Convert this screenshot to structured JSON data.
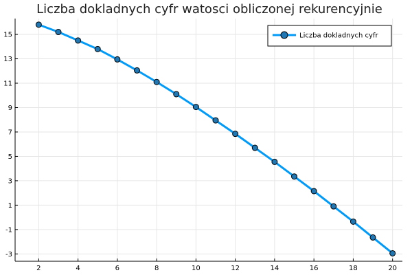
{
  "chart_data": {
    "type": "line",
    "title": "Liczba dokladnych cyfr watosci obliczonej rekurencyjnie",
    "xlabel": "",
    "ylabel": "",
    "xlim": [
      0.8,
      20.5
    ],
    "ylim": [
      -3.6,
      16.3
    ],
    "xticks": [
      2,
      4,
      6,
      8,
      10,
      12,
      14,
      16,
      18,
      20
    ],
    "yticks": [
      -3,
      -1,
      1,
      3,
      5,
      7,
      9,
      11,
      13,
      15
    ],
    "grid": true,
    "legend_position": "top-right",
    "series": [
      {
        "name": "Liczba dokladnych cyfr",
        "color": "#009af9",
        "marker_color": "#1f77b4",
        "x": [
          2,
          3,
          4,
          5,
          6,
          7,
          8,
          9,
          10,
          11,
          12,
          13,
          14,
          15,
          16,
          17,
          18,
          19,
          20
        ],
        "y": [
          15.8,
          15.2,
          14.5,
          13.8,
          12.95,
          12.05,
          11.1,
          10.1,
          9.05,
          7.95,
          6.85,
          5.7,
          4.55,
          3.35,
          2.15,
          0.9,
          -0.35,
          -1.65,
          -2.95
        ]
      }
    ]
  }
}
